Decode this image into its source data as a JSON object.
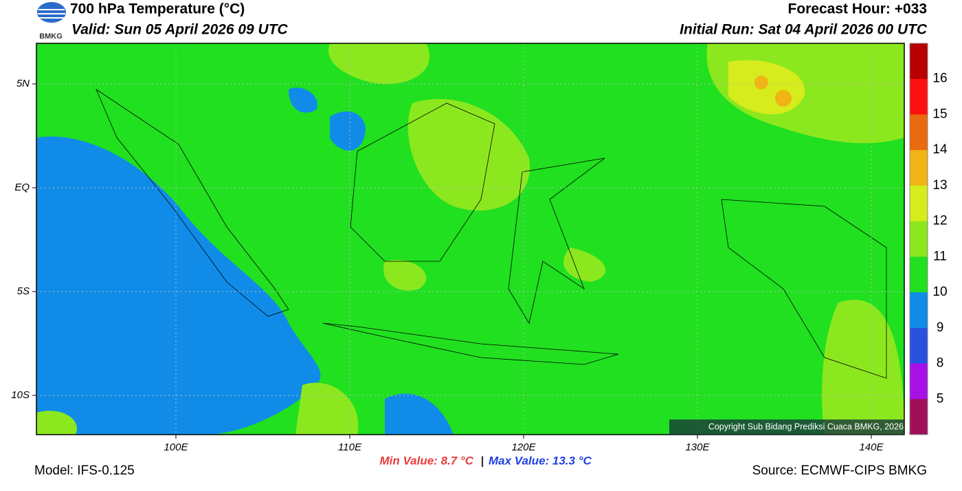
{
  "header": {
    "title": "700 hPa Temperature (°C)",
    "valid": "Valid: Sun 05 April 2026 09 UTC",
    "forecast_hour": "Forecast Hour: +033",
    "initial_run": "Initial Run: Sat 04 April 2026 00 UTC",
    "logo_text": "BMKG"
  },
  "map": {
    "lat_labels": [
      "5N",
      "EQ",
      "5S",
      "10S"
    ],
    "lon_labels": [
      "100E",
      "110E",
      "120E",
      "130E",
      "140E"
    ],
    "copyright": "Copyright Sub Bidang Prediksi Cuaca BMKG, 2026"
  },
  "colorbar": {
    "labels": [
      "16",
      "15",
      "14",
      "13",
      "12",
      "11",
      "10",
      "9",
      "8",
      "5"
    ],
    "colors": [
      "#b80000",
      "#ff1010",
      "#ea6a10",
      "#f0b414",
      "#d6ec1c",
      "#8ce81e",
      "#20e020",
      "#108ce8",
      "#2a50e0",
      "#a810e8",
      "#a0105a"
    ]
  },
  "footer": {
    "model": "Model: IFS-0.125",
    "min_value": "Min Value: 8.7 °C",
    "separator": "|",
    "max_value": "Max Value: 13.3 °C",
    "source": "Source: ECMWF-CIPS BMKG"
  }
}
